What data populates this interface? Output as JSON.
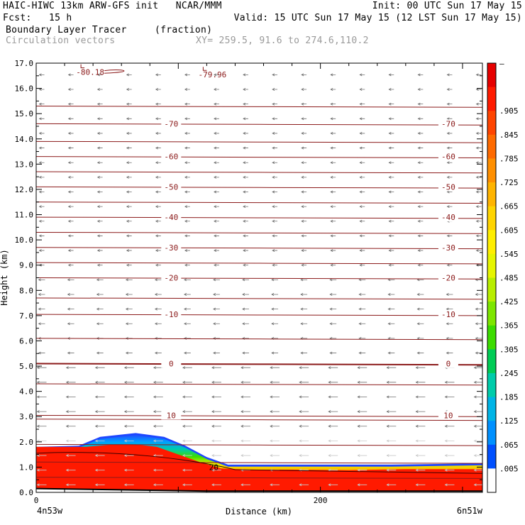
{
  "header": {
    "line1_left": "HAIC-HIWC 13km ARW-GFS init   NCAR/MMM",
    "line1_right": "Init: 00 UTC Sun 17 May 15",
    "line2_left": "Fcst:   15 h",
    "line2_right": "Valid: 15 UTC Sun 17 May 15 (12 LST Sun 17 May 15)",
    "field_name": "Boundary Layer Tracer",
    "field_units": "(fraction)",
    "vector_label": "Circulation vectors",
    "cross_section": "XY= 259.5, 91.6 to 274.6,110.2"
  },
  "chart_data": {
    "type": "heatmap",
    "title": "Boundary Layer Tracer",
    "units": "(fraction)",
    "xlabel": "Distance (km)",
    "ylabel": "Height (km)",
    "xlim": [
      0,
      314
    ],
    "ylim": [
      0,
      17
    ],
    "x_ticks": [
      0,
      200
    ],
    "x_end_labels": [
      "4n53w",
      "6n51w"
    ],
    "y_ticks": [
      "0.0",
      "1.0",
      "2.0",
      "3.0",
      "4.0",
      "5.0",
      "6.0",
      "7.0",
      "8.0",
      "9.0",
      "10.0",
      "11.0",
      "12.0",
      "13.0",
      "14.0",
      "15.0",
      "16.0",
      "17.0"
    ],
    "colorbar": {
      "levels": [
        "–",
        ".905",
        ".845",
        ".785",
        ".725",
        ".665",
        ".605",
        ".545",
        ".485",
        ".425",
        ".365",
        ".305",
        ".245",
        ".185",
        ".125",
        ".065",
        ".005"
      ],
      "colors": [
        "#e60000",
        "#ff1a00",
        "#ff4400",
        "#ff6a00",
        "#ff8f00",
        "#ffb400",
        "#ffd400",
        "#ffee00",
        "#e6f500",
        "#b8ee00",
        "#7de600",
        "#3cdc00",
        "#00cc55",
        "#00ccaa",
        "#00b4e6",
        "#0090ff",
        "#0050ff",
        "#ffffff"
      ]
    },
    "tracer_region": {
      "full_top_km_by_distance": [
        [
          0,
          1.8
        ],
        [
          35,
          1.8
        ],
        [
          55,
          1.9
        ],
        [
          70,
          1.9
        ],
        [
          85,
          1.8
        ],
        [
          100,
          1.5
        ],
        [
          115,
          1.2
        ],
        [
          130,
          0.95
        ],
        [
          150,
          0.9
        ],
        [
          180,
          0.9
        ],
        [
          220,
          0.88
        ],
        [
          260,
          0.92
        ],
        [
          314,
          0.92
        ]
      ],
      "outer_top_km_by_distance": [
        [
          0,
          1.8
        ],
        [
          30,
          1.85
        ],
        [
          45,
          2.2
        ],
        [
          70,
          2.35
        ],
        [
          90,
          2.2
        ],
        [
          105,
          1.85
        ],
        [
          120,
          1.4
        ],
        [
          135,
          1.1
        ],
        [
          155,
          1.1
        ],
        [
          200,
          1.1
        ],
        [
          250,
          1.1
        ],
        [
          314,
          1.15
        ]
      ]
    },
    "temperature_contours_C": [
      {
        "label": "10",
        "height_km": 3.05
      },
      {
        "label": "0",
        "height_km": 5.1
      },
      {
        "label": "-10",
        "height_km": 7.05
      },
      {
        "label": "-20",
        "height_km": 8.5
      },
      {
        "label": "-30",
        "height_km": 9.7
      },
      {
        "label": "-40",
        "height_km": 10.9
      },
      {
        "label": "-50",
        "height_km": 12.1
      },
      {
        "label": "-60",
        "height_km": 13.3
      },
      {
        "label": "-70",
        "height_km": 14.6
      }
    ],
    "surface_contour_label": "20",
    "low_labels": [
      "-80.18",
      "-79.96"
    ],
    "vector_flow": "east-to-west"
  }
}
